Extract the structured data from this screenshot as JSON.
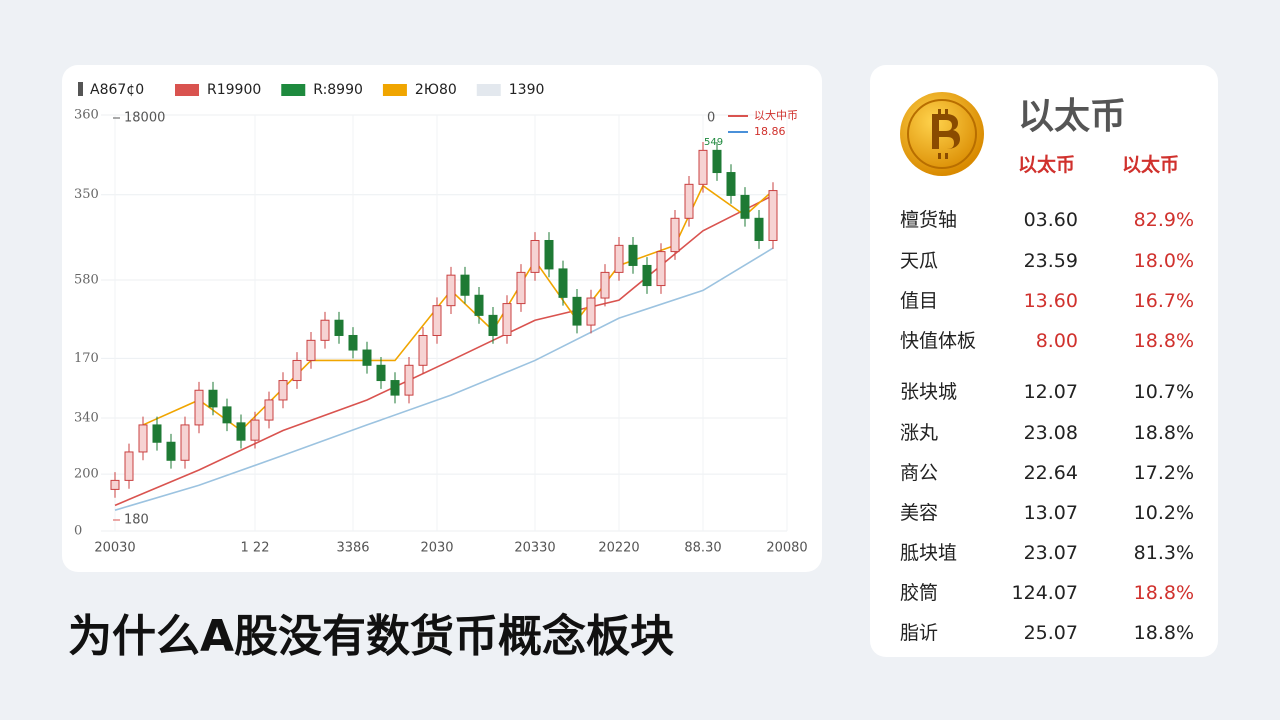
{
  "chart_data": {
    "type": "candlestick",
    "legend_title": "A867¢0",
    "ylim": [
      0,
      600
    ],
    "yticks": [
      {
        "value": 600,
        "label": "360"
      },
      {
        "value": 485,
        "label": "350"
      },
      {
        "value": 362,
        "label": "580"
      },
      {
        "value": 249,
        "label": "170"
      },
      {
        "value": 163,
        "label": "340"
      },
      {
        "value": 82,
        "label": "200"
      },
      0
    ],
    "xlim": [
      -1,
      48
    ],
    "xticks": [
      {
        "value": 0,
        "label": "20030"
      },
      {
        "value": 10,
        "label": "1 22"
      },
      {
        "value": 17,
        "label": "3386"
      },
      {
        "value": 23,
        "label": "2030"
      },
      {
        "value": 30,
        "label": "20330"
      },
      {
        "value": 36,
        "label": "20220"
      },
      {
        "value": 42,
        "label": "88.30"
      },
      {
        "value": 48,
        "label": "20080"
      }
    ],
    "grid": true,
    "up_color": "#c94040",
    "up_fill": "#f6d3d3",
    "down_color": "#1e7a34",
    "x": [
      0,
      1,
      2,
      3,
      4,
      5,
      6,
      7,
      8,
      9,
      10,
      11,
      12,
      13,
      14,
      15,
      16,
      17,
      18,
      19,
      20,
      21,
      22,
      23,
      24,
      25,
      26,
      27,
      28,
      29,
      30,
      31,
      32,
      33,
      34,
      35,
      36,
      37,
      38,
      39,
      40,
      41,
      42,
      43,
      44,
      45,
      46,
      47
    ],
    "open": [
      60,
      73,
      114,
      153,
      128,
      102,
      153,
      203,
      179,
      156,
      131,
      160,
      189,
      217,
      246,
      275,
      304,
      282,
      261,
      239,
      217,
      196,
      239,
      282,
      325,
      369,
      340,
      311,
      282,
      328,
      373,
      419,
      378,
      337,
      297,
      336,
      373,
      412,
      383,
      354,
      403,
      451,
      500,
      549,
      517,
      484,
      451,
      419
    ],
    "high": [
      85,
      126,
      165,
      165,
      140,
      165,
      215,
      215,
      191,
      168,
      172,
      201,
      229,
      258,
      287,
      316,
      316,
      294,
      273,
      251,
      229,
      251,
      294,
      337,
      381,
      381,
      352,
      323,
      340,
      385,
      431,
      431,
      390,
      349,
      348,
      385,
      424,
      424,
      395,
      415,
      463,
      512,
      561,
      561,
      529,
      496,
      463,
      503
    ],
    "low": [
      48,
      61,
      102,
      116,
      90,
      90,
      141,
      167,
      144,
      119,
      119,
      148,
      177,
      205,
      234,
      263,
      270,
      249,
      227,
      205,
      184,
      184,
      227,
      270,
      313,
      328,
      299,
      270,
      270,
      316,
      361,
      366,
      325,
      285,
      285,
      324,
      361,
      371,
      342,
      342,
      391,
      439,
      488,
      505,
      472,
      439,
      407,
      407
    ],
    "close": [
      73,
      114,
      153,
      128,
      102,
      153,
      203,
      179,
      156,
      131,
      160,
      189,
      217,
      246,
      275,
      304,
      282,
      261,
      239,
      217,
      196,
      239,
      282,
      325,
      369,
      340,
      311,
      282,
      328,
      373,
      419,
      378,
      337,
      297,
      336,
      373,
      412,
      383,
      354,
      403,
      451,
      500,
      549,
      517,
      484,
      451,
      419,
      491
    ],
    "series": [
      {
        "name": "R19900",
        "color": "#d9534f",
        "x": [
          0,
          6,
          12,
          18,
          24,
          30,
          36,
          42,
          47
        ],
        "values": [
          37,
          88,
          145,
          189,
          246,
          304,
          333,
          433,
          484
        ]
      },
      {
        "name": "R:8990",
        "color": "#1e8a3e"
      },
      {
        "name": "2Ю80",
        "color": "#f0a500",
        "x": [
          2,
          6,
          9,
          14,
          20,
          24,
          27,
          30,
          33,
          36,
          40,
          42,
          45,
          47
        ],
        "values": [
          153,
          189,
          145,
          246,
          246,
          347,
          289,
          390,
          304,
          383,
          412,
          498,
          455,
          491
        ]
      },
      {
        "name": "1390",
        "color": "#e3e8ee"
      }
    ],
    "trend_line": {
      "color": "#9cc3e0",
      "x": [
        0,
        6,
        12,
        18,
        24,
        30,
        36,
        42,
        47
      ],
      "values": [
        30,
        66,
        109,
        153,
        196,
        246,
        307,
        347,
        408
      ]
    },
    "annotations": [
      "18000",
      "180",
      "0",
      "549"
    ],
    "mini_legend": [
      {
        "label": "以大中币",
        "color": "#d9534f"
      },
      {
        "label": "18.86",
        "color": "#4a90d9"
      }
    ]
  },
  "panel": {
    "title": "以太币",
    "headers": [
      "以太币",
      "以太币"
    ],
    "up_color": "#d0312d",
    "neutral_color": "#222222",
    "rows": [
      {
        "name": "檀货轴",
        "value": "03.60",
        "change": "82.9%",
        "value_up": false,
        "change_up": true
      },
      {
        "name": "天瓜",
        "value": "23.59",
        "change": "18.0%",
        "value_up": false,
        "change_up": true
      },
      {
        "name": "值目",
        "value": "13.60",
        "change": "16.7%",
        "value_up": true,
        "change_up": true
      },
      {
        "name": "快值体板",
        "value": "8.00",
        "change": "18.8%",
        "value_up": true,
        "change_up": true
      },
      {
        "name": "张块城",
        "value": "12.07",
        "change": "10.7%",
        "value_up": false,
        "change_up": false
      },
      {
        "name": "涨丸",
        "value": "23.08",
        "change": "18.8%",
        "value_up": false,
        "change_up": false
      },
      {
        "name": "商公",
        "value": "22.64",
        "change": "17.2%",
        "value_up": false,
        "change_up": false
      },
      {
        "name": "美容",
        "value": "13.07",
        "change": "10.2%",
        "value_up": false,
        "change_up": false
      },
      {
        "name": "胝块埴",
        "value": "23.07",
        "change": "81.3%",
        "value_up": false,
        "change_up": false
      },
      {
        "name": "胶筒",
        "value": "124.07",
        "change": "18.8%",
        "value_up": false,
        "change_up": true
      },
      {
        "name": "脂䜣",
        "value": "25.07",
        "change": "18.8%",
        "value_up": false,
        "change_up": false
      }
    ]
  },
  "headline": "为什么A股没有数货币概念板块"
}
